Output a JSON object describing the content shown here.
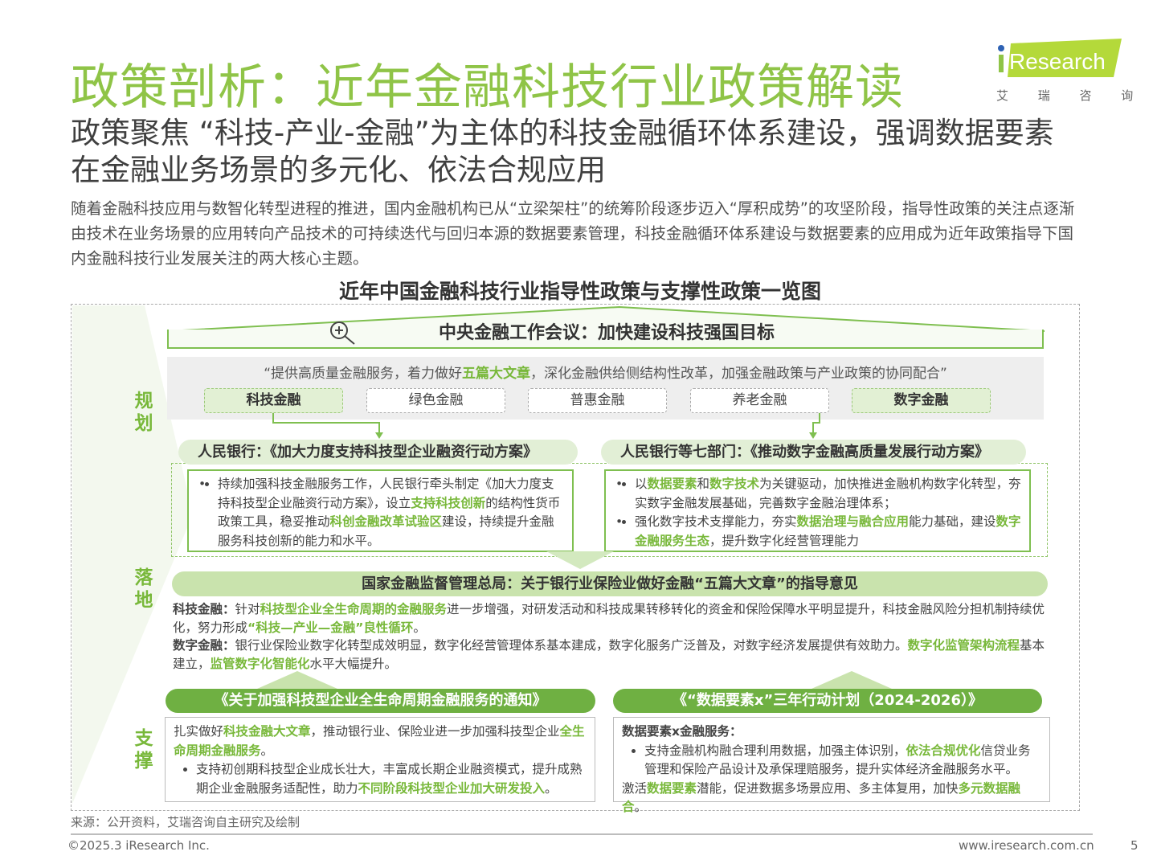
{
  "title": "政策剖析：近年金融科技行业政策解读",
  "subtitle": "政策聚焦 “科技-产业-金融”为主体的科技金融循环体系建设，强调数据要素在金融业务场景的多元化、依法合规应用",
  "intro": "随着金融科技应用与数智化转型进程的推进，国内金融机构已从“立梁架柱”的统筹阶段逐步迈入“厚积成势”的攻坚阶段，指导性政策的关注点逐渐由技术在业务场景的应用转向产品技术的可持续迭代与回归本源的数据要素管理，科技金融循环体系建设与数据要素的应用成为近年政策指导下国内金融科技行业发展关注的两大核心主题。",
  "logo": {
    "brand": "iResearch",
    "cn": "艾 瑞 咨 询"
  },
  "chart_title": "近年中国金融科技行业指导性政策与支撑性政策一览图",
  "sections": {
    "plan": "规划",
    "landing": "落地",
    "support": "支撑"
  },
  "roof_title": "中央金融工作会议：加快建设科技强国目标",
  "quote": [
    {
      "t": "“提供高质量金融服务，着力做好"
    },
    {
      "t": "五篇大文章",
      "hl": true
    },
    {
      "t": "，深化金融供给侧结构性改革，加强金融政策与产业政策的协同配合”"
    }
  ],
  "pills": [
    {
      "label": "科技金融",
      "on": true
    },
    {
      "label": "绿色金融"
    },
    {
      "label": "普惠金融"
    },
    {
      "label": "养老金融"
    },
    {
      "label": "数字金融",
      "on": true
    }
  ],
  "left_policy": {
    "head": "人民银行：《加大力度支持科技型企业融资行动方案》",
    "items": [
      [
        {
          "t": "持续加强科技金融服务工作，人民银行牵头制定《加大力度支持科技型企业融资行动方案》，设立"
        },
        {
          "t": "支持科技创新",
          "hl": true
        },
        {
          "t": "的结构性货币政策工具，稳妥推动"
        },
        {
          "t": "科创金融改革试验区",
          "hl": true
        },
        {
          "t": "建设，持续提升金融服务科技创新的能力和水平。"
        }
      ]
    ]
  },
  "right_policy": {
    "head": "人民银行等七部门：《推动数字金融高质量发展行动方案》",
    "items": [
      [
        {
          "t": "以"
        },
        {
          "t": "数据要素",
          "hl": true
        },
        {
          "t": "和"
        },
        {
          "t": "数字技术",
          "hl": true
        },
        {
          "t": "为关键驱动，加快推进金融机构数字化转型，夯实数字金融发展基础，完善数字金融治理体系；"
        }
      ],
      [
        {
          "t": "强化数字技术支撑能力，夯实"
        },
        {
          "t": "数据治理与融合应用",
          "hl": true
        },
        {
          "t": "能力基础，建设"
        },
        {
          "t": "数字金融服务生态",
          "hl": true
        },
        {
          "t": "，提升数字化经营管理能力"
        }
      ]
    ]
  },
  "nfra": {
    "head": "国家金融监督管理总局：关于银行业保险业做好金融“五篇大文章”的指导意见",
    "p1": [
      {
        "t": "科技金融：",
        "b": true
      },
      {
        "t": "针对"
      },
      {
        "t": "科技型企业全生命周期的金融服务",
        "hl": true
      },
      {
        "t": "进一步增强，对研发活动和科技成果转移转化的资金和保险保障水平明显提升，科技金融风险分担机制持续优化，努力形成"
      },
      {
        "t": "“科技—产业—金融”良性循环",
        "hl": true
      },
      {
        "t": "。"
      }
    ],
    "p2": [
      {
        "t": "数字金融：",
        "b": true
      },
      {
        "t": "银行业保险业数字化转型成效明显，数字化经营管理体系基本建成，数字化服务广泛普及，对数字经济发展提供有效助力。"
      },
      {
        "t": "数字化监管架构流程",
        "hl": true
      },
      {
        "t": "基本建立，"
      },
      {
        "t": "监管数字化智能化",
        "hl": true
      },
      {
        "t": "水平大幅提升。"
      }
    ]
  },
  "support_left": {
    "head": "《关于加强科技型企业全生命周期金融服务的通知》",
    "lead": [
      {
        "t": "扎实做好"
      },
      {
        "t": "科技金融大文章",
        "hl": true
      },
      {
        "t": "，推动银行业、保险业进一步加强科技型企业"
      },
      {
        "t": "全生命周期金融服务",
        "hl": true
      },
      {
        "t": "。"
      }
    ],
    "items": [
      [
        {
          "t": "支持初创期科技型企业成长壮大，丰富成长期企业融资模式，提升成熟期企业金融服务适配性，助力"
        },
        {
          "t": "不同阶段科技型企业加大研发投入",
          "hl": true
        },
        {
          "t": "。"
        }
      ]
    ]
  },
  "support_right": {
    "head": "《“数据要素x”三年行动计划（2024-2026）》",
    "lead": [
      {
        "t": "数据要素x金融服务：",
        "b": true
      }
    ],
    "items": [
      [
        {
          "t": "支持金融机构融合理利用数据，加强主体识别，"
        },
        {
          "t": "依法合规优化",
          "hl": true
        },
        {
          "t": "信贷业务管理和保险产品设计及承保理赔服务，提升实体经济金融服务水平。"
        }
      ]
    ],
    "tail": [
      {
        "t": "激活"
      },
      {
        "t": "数据要素",
        "hl": true
      },
      {
        "t": "潜能，促进数据多场景应用、多主体复用，加快"
      },
      {
        "t": "多元数据融合",
        "hl": true
      },
      {
        "t": "。"
      }
    ]
  },
  "source": "来源：公开资料，艾瑞咨询自主研究及绘制",
  "footer": {
    "copyright": "©2025.3 iResearch Inc.",
    "url": "www.iresearch.com.cn",
    "page": "5"
  },
  "colors": {
    "accent": "#8fc447",
    "highlight": "#78b83a",
    "banner": "#6fb042"
  }
}
